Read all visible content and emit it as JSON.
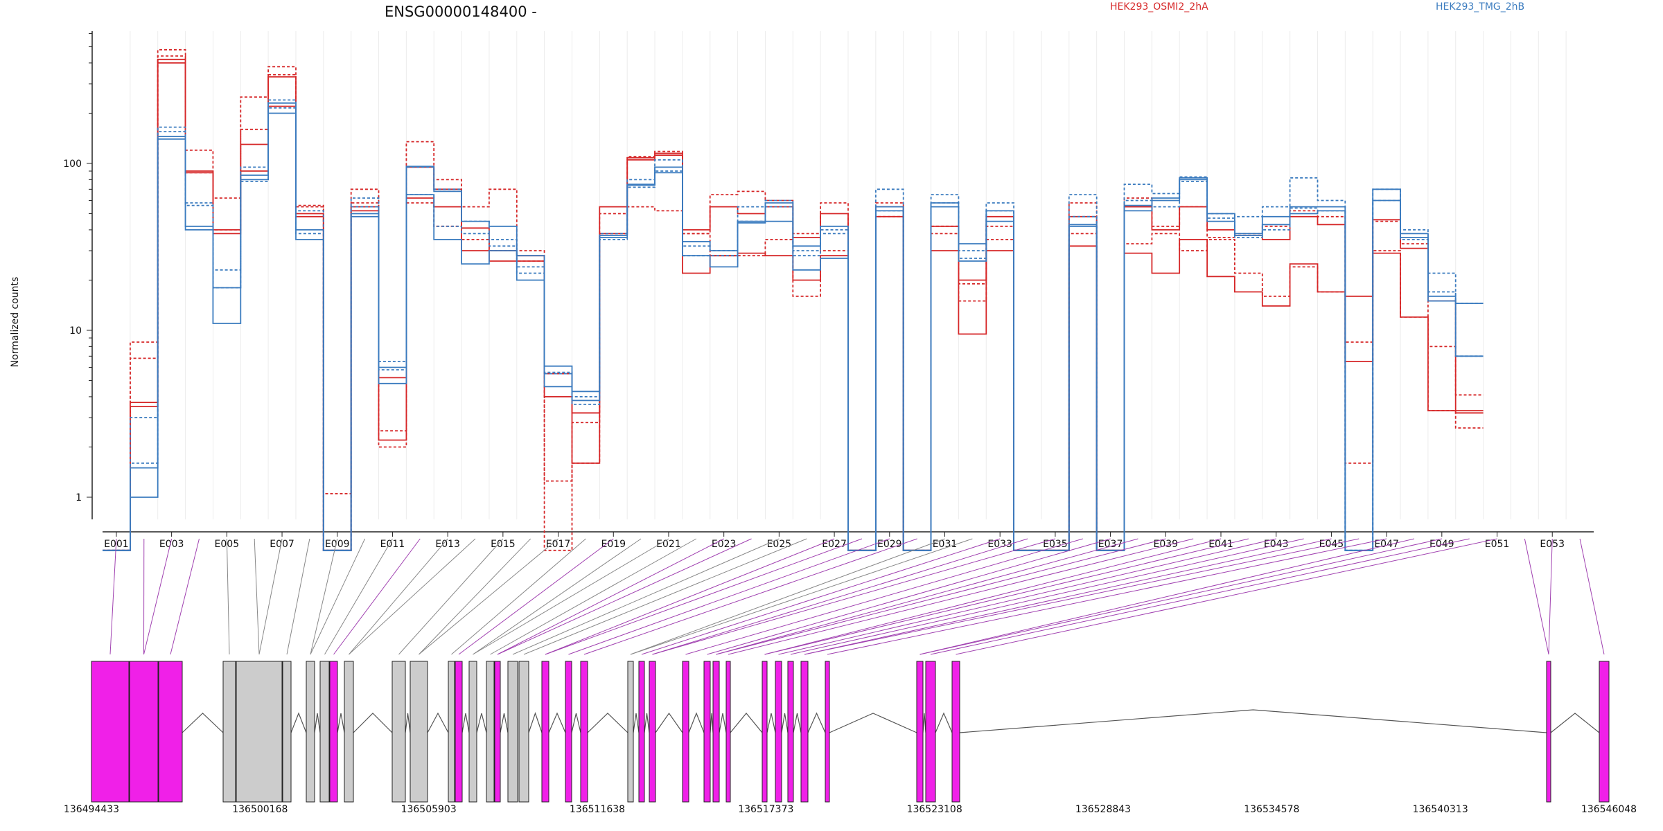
{
  "chart_data": {
    "type": "line",
    "title": "ENSG00000148400 -",
    "ylabel": "Normalized counts",
    "yscale": "log",
    "yticks": [
      "1",
      "10",
      "100"
    ],
    "legend": [
      "HEK293_OSMI2_2hA",
      "HEK293_TMG_2hB"
    ],
    "colors": {
      "osmi": "#d62728",
      "tmg": "#3a7bbf",
      "exon_highlight": "#f020e8",
      "exon_plain": "#cccccc",
      "connector_highlight": "#a040b0",
      "connector_plain": "#888888"
    },
    "exon_labels": [
      "E001",
      "E003",
      "E005",
      "E007",
      "E009",
      "E011",
      "E013",
      "E015",
      "E017",
      "E019",
      "E021",
      "E023",
      "E025",
      "E027",
      "E029",
      "E031",
      "E033",
      "E035",
      "E037",
      "E039",
      "E041",
      "E043",
      "E045",
      "E047",
      "E049",
      "E051",
      "E053"
    ],
    "genomic_ticks": [
      "136494433",
      "136500168",
      "136505903",
      "136511638",
      "136517373",
      "136523108",
      "136528843",
      "136534578",
      "136540313",
      "136546048"
    ],
    "series": [
      {
        "group": "osmi",
        "style": "solid",
        "values": [
          0.48,
          3.7,
          420,
          90,
          40,
          90,
          220,
          50,
          0.48,
          55,
          5.2,
          95,
          70,
          41,
          30,
          28,
          5.5,
          3.2,
          55,
          108,
          115,
          40,
          55,
          50,
          55,
          36,
          50,
          0.48,
          55,
          0.48,
          42,
          20,
          48,
          0.48,
          0.48,
          48,
          0.48,
          55,
          40,
          55,
          40,
          37,
          35,
          48,
          43,
          16,
          46,
          31,
          15,
          3.2
        ]
      },
      {
        "group": "osmi",
        "style": "dashed",
        "values": [
          0.48,
          8.5,
          480,
          120,
          62,
          250,
          380,
          56,
          1.05,
          70,
          2.5,
          135,
          80,
          55,
          70,
          30,
          1.25,
          1.6,
          50,
          110,
          118,
          38,
          65,
          68,
          60,
          38,
          58,
          0.48,
          58,
          0.48,
          42,
          15,
          42,
          0.48,
          0.48,
          58,
          0.48,
          62,
          42,
          55,
          36,
          38,
          42,
          52,
          48,
          8.5,
          45,
          33,
          8,
          4.1
        ]
      },
      {
        "group": "osmi",
        "style": "solid",
        "values": [
          0.48,
          3.5,
          400,
          88,
          38,
          130,
          330,
          48,
          0.48,
          52,
          2.2,
          62,
          55,
          30,
          26,
          26,
          4.0,
          1.6,
          38,
          105,
          112,
          22,
          28,
          29,
          28,
          20,
          28,
          0.48,
          48,
          0.48,
          30,
          9.5,
          30,
          0.48,
          0.48,
          32,
          0.48,
          29,
          22,
          35,
          21,
          17,
          14,
          25,
          17,
          6.5,
          29,
          12,
          3.3,
          3.3
        ]
      },
      {
        "group": "osmi",
        "style": "dashed",
        "values": [
          0.48,
          6.8,
          440,
          88,
          40,
          160,
          340,
          55,
          0.48,
          58,
          2.0,
          58,
          42,
          35,
          30,
          26,
          0.48,
          2.8,
          38,
          55,
          52,
          38,
          28,
          28,
          35,
          16,
          30,
          0.48,
          48,
          0.48,
          38,
          19,
          35,
          0.48,
          0.48,
          38,
          0.48,
          33,
          38,
          30,
          35,
          22,
          16,
          24,
          17,
          1.6,
          30,
          12,
          3.3,
          2.6
        ]
      },
      {
        "group": "tmg",
        "style": "solid",
        "values": [
          0.48,
          1.5,
          145,
          40,
          18,
          80,
          200,
          40,
          0.48,
          50,
          6.0,
          96,
          68,
          45,
          42,
          28,
          6.1,
          4.3,
          37,
          74,
          88,
          34,
          30,
          45,
          58,
          32,
          42,
          0.48,
          55,
          0.48,
          58,
          33,
          52,
          0.48,
          0.48,
          43,
          0.48,
          56,
          62,
          82,
          50,
          38,
          48,
          55,
          55,
          0.48,
          70,
          38,
          15,
          14.5
        ]
      },
      {
        "group": "tmg",
        "style": "dashed",
        "values": [
          0.48,
          3.0,
          165,
          58,
          23,
          95,
          240,
          52,
          0.48,
          62,
          6.5,
          95,
          70,
          45,
          32,
          22,
          5.5,
          4.0,
          38,
          80,
          105,
          32,
          30,
          55,
          60,
          30,
          38,
          0.48,
          70,
          0.48,
          65,
          30,
          58,
          0.48,
          0.48,
          65,
          0.48,
          75,
          66,
          83,
          50,
          48,
          55,
          82,
          60,
          0.48,
          70,
          40,
          22,
          14.5
        ]
      },
      {
        "group": "tmg",
        "style": "solid",
        "values": [
          0.48,
          1.0,
          140,
          42,
          11,
          85,
          230,
          35,
          0.48,
          48,
          4.8,
          65,
          35,
          25,
          30,
          20,
          4.6,
          3.8,
          36,
          75,
          95,
          28,
          24,
          44,
          45,
          23,
          27,
          0.48,
          52,
          0.48,
          55,
          26,
          45,
          0.48,
          0.48,
          42,
          0.48,
          52,
          60,
          80,
          45,
          37,
          43,
          50,
          52,
          0.48,
          60,
          36,
          16,
          7
        ]
      },
      {
        "group": "tmg",
        "style": "dashed",
        "values": [
          0.48,
          1.6,
          155,
          56,
          18,
          78,
          215,
          38,
          0.48,
          55,
          5.8,
          65,
          42,
          38,
          35,
          24,
          5.6,
          3.6,
          35,
          72,
          90,
          28,
          28,
          45,
          55,
          28,
          40,
          0.48,
          52,
          0.48,
          58,
          27,
          52,
          0.48,
          0.48,
          48,
          0.48,
          60,
          55,
          78,
          47,
          36,
          40,
          54,
          52,
          0.48,
          60,
          35,
          17,
          7
        ]
      }
    ]
  }
}
